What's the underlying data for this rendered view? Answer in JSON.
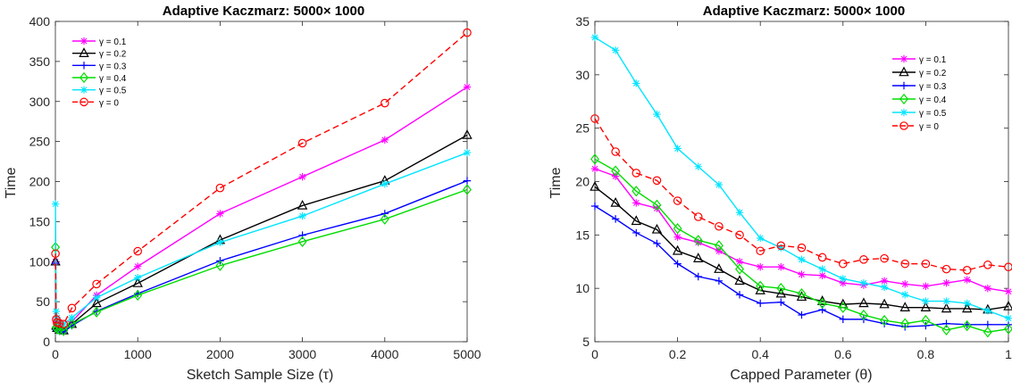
{
  "chart_data": [
    {
      "type": "line",
      "title": "Adaptive Kaczmarz: 5000× 1000",
      "xlabel": "Sketch Sample Size (τ)",
      "ylabel": "Time",
      "xlim": [
        0,
        5000
      ],
      "ylim": [
        0,
        400
      ],
      "xticks": [
        0,
        1000,
        2000,
        3000,
        4000,
        5000
      ],
      "yticks": [
        0,
        50,
        100,
        150,
        200,
        250,
        300,
        350,
        400
      ],
      "legend_position": "top-left",
      "x": [
        1,
        10,
        20,
        50,
        100,
        200,
        500,
        1000,
        2000,
        3000,
        4000,
        5000
      ],
      "series": [
        {
          "name": "γ = 0.1",
          "legend_label": "γ = 0.1",
          "color": "#ff00ff",
          "marker": "star",
          "dash": false,
          "values": [
            100,
            25,
            20,
            18,
            16,
            25,
            58,
            94,
            160,
            206,
            252,
            318
          ]
        },
        {
          "name": "γ = 0.2",
          "legend_label": "γ = 0.2",
          "color": "#000000",
          "marker": "triangle",
          "dash": false,
          "values": [
            100,
            20,
            17,
            15,
            14,
            22,
            48,
            73,
            127,
            170,
            201,
            258
          ]
        },
        {
          "name": "γ = 0.3",
          "legend_label": "γ = 0.3",
          "color": "#0000ff",
          "marker": "plus",
          "dash": false,
          "values": [
            98,
            15,
            14,
            13,
            12,
            20,
            38,
            60,
            101,
            133,
            160,
            201
          ]
        },
        {
          "name": "γ = 0.4",
          "legend_label": "γ = 0.4",
          "color": "#00dd00",
          "marker": "diamond",
          "dash": false,
          "values": [
            118,
            18,
            16,
            15,
            14,
            22,
            37,
            58,
            95,
            125,
            153,
            190
          ]
        },
        {
          "name": "γ = 0.5",
          "legend_label": "γ = 0.5",
          "color": "#00e5ff",
          "marker": "star",
          "dash": false,
          "values": [
            172,
            38,
            30,
            24,
            22,
            30,
            55,
            80,
            124,
            157,
            197,
            236
          ]
        },
        {
          "name": "γ = 0",
          "legend_label": "γ = 0",
          "color": "#ff0000",
          "marker": "circle",
          "dash": true,
          "values": [
            110,
            28,
            24,
            23,
            22,
            42,
            72,
            113,
            192,
            248,
            298,
            386
          ]
        }
      ]
    },
    {
      "type": "line",
      "title": "Adaptive Kaczmarz: 5000× 1000",
      "xlabel": "Capped Parameter (θ)",
      "ylabel": "Time",
      "xlim": [
        0,
        1
      ],
      "ylim": [
        5,
        35
      ],
      "xticks": [
        0,
        0.2,
        0.4,
        0.6,
        0.8,
        1
      ],
      "yticks": [
        5,
        10,
        15,
        20,
        25,
        30,
        35
      ],
      "legend_position": "top-right",
      "x": [
        0,
        0.05,
        0.1,
        0.15,
        0.2,
        0.25,
        0.3,
        0.35,
        0.4,
        0.45,
        0.5,
        0.55,
        0.6,
        0.65,
        0.7,
        0.75,
        0.8,
        0.85,
        0.9,
        0.95,
        1
      ],
      "series": [
        {
          "name": "γ = 0.1",
          "legend_label": "γ = 0.1",
          "color": "#ff00ff",
          "marker": "star",
          "dash": false,
          "values": [
            21.2,
            20.5,
            18.0,
            17.5,
            14.8,
            14.3,
            13.5,
            12.5,
            12.0,
            12.0,
            11.3,
            11.2,
            10.5,
            10.3,
            10.7,
            10.4,
            10.2,
            10.5,
            10.8,
            10.0,
            9.7
          ]
        },
        {
          "name": "γ = 0.2",
          "legend_label": "γ = 0.2",
          "color": "#000000",
          "marker": "triangle",
          "dash": false,
          "values": [
            19.5,
            18.0,
            16.3,
            15.5,
            13.5,
            12.8,
            11.8,
            10.7,
            9.8,
            9.5,
            9.2,
            8.8,
            8.5,
            8.6,
            8.5,
            8.2,
            8.2,
            8.1,
            8.1,
            8.0,
            8.3
          ]
        },
        {
          "name": "γ = 0.3",
          "legend_label": "γ = 0.3",
          "color": "#0000ff",
          "marker": "plus",
          "dash": false,
          "values": [
            17.7,
            16.5,
            15.2,
            14.2,
            12.3,
            11.1,
            10.7,
            9.4,
            8.6,
            8.7,
            7.5,
            8.0,
            7.1,
            7.1,
            6.7,
            6.4,
            6.5,
            6.7,
            6.6,
            6.6,
            6.6
          ]
        },
        {
          "name": "γ = 0.4",
          "legend_label": "γ = 0.4",
          "color": "#00dd00",
          "marker": "diamond",
          "dash": false,
          "values": [
            22.1,
            21.0,
            19.1,
            17.8,
            15.6,
            14.5,
            14.0,
            11.8,
            10.2,
            10.0,
            9.5,
            8.6,
            8.2,
            7.5,
            7.0,
            6.7,
            7.0,
            6.1,
            6.5,
            5.9,
            6.2
          ]
        },
        {
          "name": "γ = 0.5",
          "legend_label": "γ = 0.5",
          "color": "#00e5ff",
          "marker": "star",
          "dash": false,
          "values": [
            33.5,
            32.3,
            29.2,
            26.3,
            23.1,
            21.4,
            19.7,
            17.1,
            14.7,
            13.8,
            12.7,
            11.8,
            10.9,
            10.5,
            10.1,
            9.4,
            8.8,
            8.8,
            8.6,
            7.9,
            7.2
          ]
        },
        {
          "name": "γ = 0",
          "legend_label": "γ = 0",
          "color": "#ff0000",
          "marker": "circle",
          "dash": true,
          "values": [
            25.9,
            22.8,
            20.8,
            20.1,
            18.2,
            16.7,
            15.8,
            15.0,
            13.5,
            14.0,
            13.8,
            12.9,
            12.3,
            12.7,
            12.8,
            12.3,
            12.3,
            11.8,
            11.7,
            12.2,
            12.0
          ]
        }
      ]
    }
  ]
}
